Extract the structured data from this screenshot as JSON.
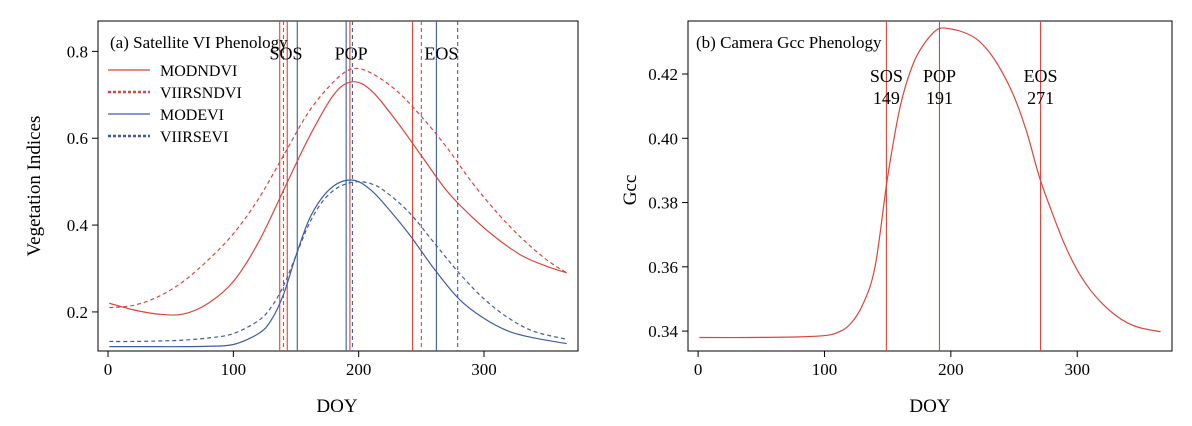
{
  "chart_data": [
    {
      "type": "line",
      "title": "(a) Satellite VI Phenology",
      "xlabel": "DOY",
      "ylabel": "Vegetation Indices",
      "xlim": [
        -8,
        375
      ],
      "ylim": [
        0.11,
        0.87
      ],
      "xticks": [
        0,
        100,
        200,
        300
      ],
      "yticks": [
        0.2,
        0.4,
        0.6,
        0.8
      ],
      "grid": false,
      "legend_position": "top-left",
      "colors": {
        "red": "#d8463b",
        "blue": "#3f5d9e"
      },
      "series": [
        {
          "name": "MODNDVI",
          "color": "#d8463b",
          "dash": "solid",
          "x": [
            1,
            20,
            40,
            60,
            80,
            100,
            120,
            140,
            160,
            180,
            195,
            210,
            230,
            250,
            270,
            290,
            310,
            330,
            350,
            366
          ],
          "y": [
            0.22,
            0.205,
            0.195,
            0.195,
            0.22,
            0.27,
            0.36,
            0.48,
            0.6,
            0.7,
            0.73,
            0.71,
            0.64,
            0.56,
            0.48,
            0.42,
            0.37,
            0.33,
            0.305,
            0.29
          ]
        },
        {
          "name": "VIIRSNDVI",
          "color": "#d8463b",
          "dash": "dashed",
          "x": [
            1,
            20,
            40,
            60,
            80,
            100,
            120,
            140,
            160,
            180,
            195,
            210,
            230,
            250,
            270,
            290,
            310,
            330,
            350,
            366
          ],
          "y": [
            0.21,
            0.215,
            0.235,
            0.27,
            0.32,
            0.38,
            0.46,
            0.56,
            0.66,
            0.73,
            0.76,
            0.75,
            0.71,
            0.65,
            0.58,
            0.5,
            0.43,
            0.37,
            0.32,
            0.29
          ]
        },
        {
          "name": "MODEVI",
          "color": "#3f5d9e",
          "dash": "solid",
          "x": [
            1,
            20,
            40,
            60,
            80,
            100,
            120,
            130,
            140,
            150,
            160,
            170,
            180,
            190,
            200,
            210,
            220,
            240,
            260,
            280,
            300,
            320,
            340,
            366
          ],
          "y": [
            0.12,
            0.12,
            0.12,
            0.12,
            0.121,
            0.125,
            0.15,
            0.18,
            0.24,
            0.33,
            0.41,
            0.46,
            0.49,
            0.503,
            0.5,
            0.48,
            0.45,
            0.38,
            0.3,
            0.23,
            0.185,
            0.155,
            0.14,
            0.127
          ]
        },
        {
          "name": "VIIRSEVI",
          "color": "#3f5d9e",
          "dash": "dashed",
          "x": [
            1,
            20,
            40,
            60,
            80,
            100,
            120,
            130,
            140,
            150,
            160,
            170,
            180,
            190,
            200,
            210,
            220,
            240,
            260,
            280,
            300,
            320,
            340,
            366
          ],
          "y": [
            0.132,
            0.132,
            0.133,
            0.135,
            0.14,
            0.15,
            0.18,
            0.21,
            0.26,
            0.33,
            0.4,
            0.45,
            0.48,
            0.495,
            0.5,
            0.495,
            0.48,
            0.43,
            0.36,
            0.29,
            0.23,
            0.185,
            0.155,
            0.137
          ]
        }
      ],
      "vlines": [
        {
          "x": 137,
          "color": "#d8463b",
          "dash": "solid"
        },
        {
          "x": 140,
          "color": "#d8463b",
          "dash": "dashed"
        },
        {
          "x": 143,
          "color": "#d8463b",
          "dash": "solid"
        },
        {
          "x": 151,
          "color": "#3f5d9e",
          "dash": "solid"
        },
        {
          "x": 190,
          "color": "#3f5d9e",
          "dash": "solid"
        },
        {
          "x": 193,
          "color": "#d8463b",
          "dash": "solid"
        },
        {
          "x": 195,
          "color": "#3f5d9e",
          "dash": "dashed"
        },
        {
          "x": 243,
          "color": "#d8463b",
          "dash": "solid"
        },
        {
          "x": 250,
          "color": "#d8463b",
          "dash": "dashed"
        },
        {
          "x": 262,
          "color": "#3f5d9e",
          "dash": "solid"
        },
        {
          "x": 279,
          "color": "#3f5d9e",
          "dash": "dashed"
        }
      ],
      "annotations": [
        {
          "text": "SOS",
          "x": 142,
          "y": 0.8
        },
        {
          "text": "POP",
          "x": 194,
          "y": 0.8
        },
        {
          "text": "EOS",
          "x": 266,
          "y": 0.8
        }
      ]
    },
    {
      "type": "line",
      "title": "(b) Camera Gcc Phenology",
      "xlabel": "DOY",
      "ylabel": "Gcc",
      "xlim": [
        -8,
        375
      ],
      "ylim": [
        0.3338,
        0.4365
      ],
      "xticks": [
        0,
        100,
        200,
        300
      ],
      "yticks": [
        0.34,
        0.36,
        0.38,
        0.4,
        0.42
      ],
      "grid": false,
      "series": [
        {
          "color": "#d8463b",
          "dash": "solid",
          "x": [
            1,
            40,
            80,
            100,
            110,
            120,
            130,
            140,
            150,
            160,
            170,
            180,
            190,
            200,
            210,
            220,
            230,
            240,
            250,
            260,
            270,
            280,
            290,
            300,
            310,
            320,
            330,
            340,
            350,
            366
          ],
          "y": [
            0.338,
            0.338,
            0.3382,
            0.3386,
            0.3395,
            0.342,
            0.348,
            0.36,
            0.388,
            0.41,
            0.423,
            0.43,
            0.434,
            0.434,
            0.433,
            0.431,
            0.427,
            0.421,
            0.413,
            0.402,
            0.388,
            0.377,
            0.367,
            0.359,
            0.353,
            0.3485,
            0.345,
            0.3425,
            0.341,
            0.3398
          ]
        }
      ],
      "vlines": [
        {
          "x": 149,
          "color": "#d8463b",
          "dash": "solid"
        },
        {
          "x": 191,
          "color": "#d8463b",
          "dash": "solid"
        },
        {
          "x": 271,
          "color": "#d8463b",
          "dash": "solid"
        }
      ],
      "annotations": [
        {
          "label": "SOS",
          "value": "149",
          "x": 149
        },
        {
          "label": "POP",
          "value": "191",
          "x": 191
        },
        {
          "label": "EOS",
          "value": "271",
          "x": 271
        }
      ]
    }
  ]
}
